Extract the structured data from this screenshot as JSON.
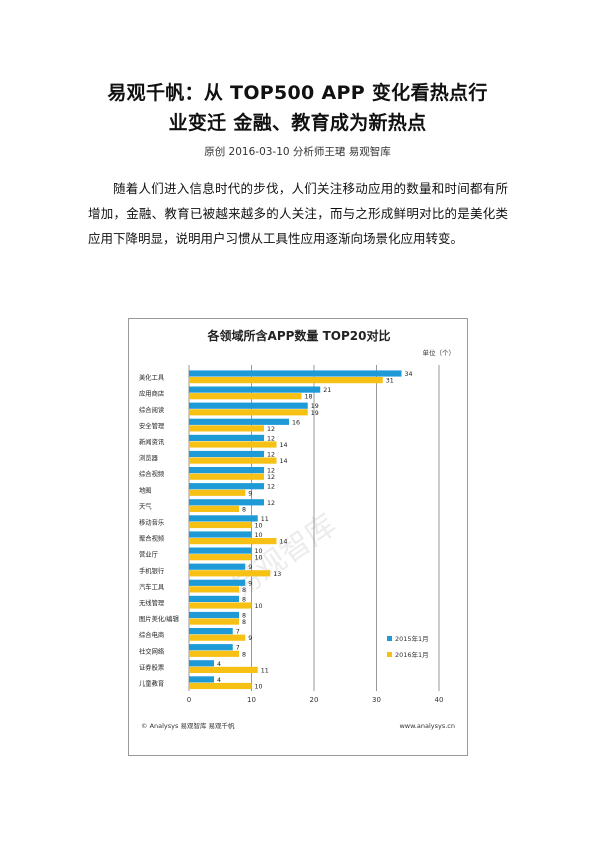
{
  "article": {
    "title_line1": "易观千帆：从 TOP500 APP 变化看热点行",
    "title_line2": "业变迁   金融、教育成为新热点",
    "byline": "原创  2016-03-10  分析师王珺  易观智库",
    "paragraph": "随着人们进入信息时代的步伐，人们关注移动应用的数量和时间都有所增加，金融、教育已被越来越多的人关注，而与之形成鲜明对比的是美化类应用下降明显，说明用户习惯从工具性应用逐渐向场景化应用转变。"
  },
  "figure": {
    "footer_left": "© Analysys 易观智库 易观千帆",
    "footer_right": "www.analysys.cn",
    "watermark": "易观智库"
  },
  "colors": {
    "series2015": "#1e9bd7",
    "series2016": "#f6c114",
    "grid": "#555555"
  },
  "chart_data": {
    "type": "bar",
    "orientation": "horizontal",
    "title": "各领域所含APP数量 TOP20对比",
    "unit_label": "单位（个）",
    "categories": [
      "美化工具",
      "应用商店",
      "综合阅读",
      "安全管理",
      "新闻资讯",
      "浏览器",
      "综合视频",
      "地图",
      "天气",
      "移动音乐",
      "聚合视频",
      "营业厅",
      "手机银行",
      "汽车工具",
      "无线管理",
      "图片美化/编辑",
      "综合电商",
      "社交网络",
      "证券股票",
      "儿童教育"
    ],
    "series": [
      {
        "name": "2015年1月",
        "values": [
          34,
          21,
          19,
          16,
          12,
          12,
          12,
          12,
          12,
          11,
          10,
          10,
          9,
          9,
          8,
          8,
          7,
          7,
          4,
          4
        ]
      },
      {
        "name": "2016年1月",
        "values": [
          31,
          18,
          19,
          12,
          14,
          14,
          12,
          9,
          8,
          10,
          14,
          10,
          13,
          8,
          10,
          8,
          9,
          8,
          11,
          10
        ]
      }
    ],
    "xlim": [
      0,
      40
    ],
    "xticks": [
      0,
      10,
      20,
      30,
      40
    ],
    "grid": true,
    "legend_position": "bottom-right"
  }
}
